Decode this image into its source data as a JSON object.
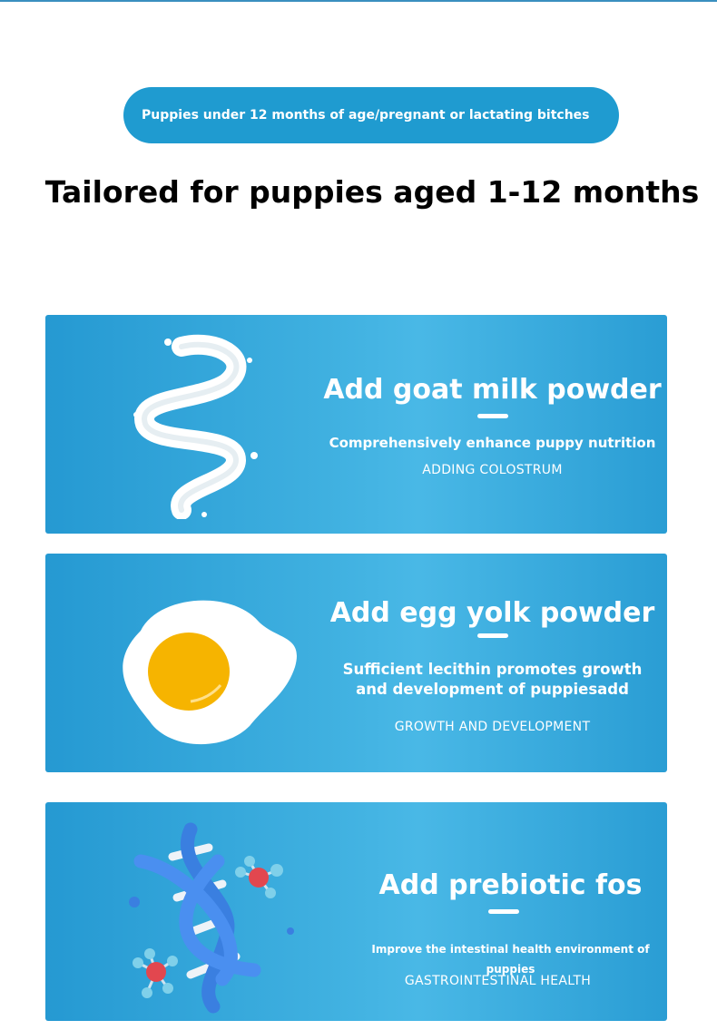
{
  "banner": "Puppies under 12 months of age/pregnant or lactating bitches",
  "headline": "Tailored for puppies aged 1-12 months",
  "cards": [
    {
      "icon": "milk-splash-icon",
      "title": "Add goat milk powder",
      "subtitle": "Comprehensively enhance puppy nutrition",
      "tag": "ADDING COLOSTRUM"
    },
    {
      "icon": "fried-egg-icon",
      "title": "Add egg yolk powder",
      "subtitle": "Sufficient lecithin promotes growth and development of puppiesadd",
      "tag": "GROWTH AND DEVELOPMENT"
    },
    {
      "icon": "dna-icon",
      "title": "Add prebiotic fos",
      "subtitle": "Improve the intestinal health environment of puppies",
      "tag": "GASTROINTESTINAL HEALTH"
    }
  ],
  "colors": {
    "accent": "#1f9bd0",
    "card_light": "#49b8e6",
    "card_dark": "#2599d2"
  }
}
